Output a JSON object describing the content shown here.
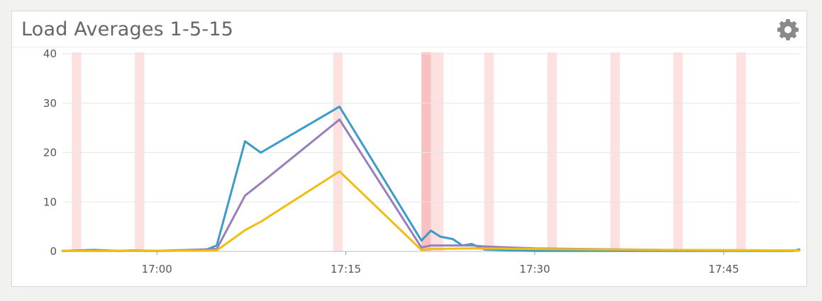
{
  "panel": {
    "title": "Load Averages 1-5-15",
    "settings_icon": "gear-icon"
  },
  "chart_data": {
    "type": "line",
    "title": "Load Averages 1-5-15",
    "xlabel": "",
    "ylabel": "",
    "ylim": [
      0,
      40
    ],
    "xlim_minutes": [
      "16:52:30",
      "17:51:00"
    ],
    "yticks": [
      0,
      10,
      20,
      30,
      40
    ],
    "xticks": [
      "17:00",
      "17:15",
      "17:30",
      "17:45"
    ],
    "grid": true,
    "legend": "none",
    "colors": {
      "series1": "#3c9cc9",
      "series2": "#9a7fba",
      "series3": "#eebf12",
      "band": "#fde0e0",
      "band_strong": "#f8c0c0",
      "grid": "#e6e6e6"
    },
    "highlight_bands": [
      [
        "16:53:15",
        "16:54:00"
      ],
      [
        "16:58:15",
        "16:59:00"
      ],
      [
        "17:14:00",
        "17:14:45"
      ],
      [
        "17:21:00",
        "17:21:45"
      ],
      [
        "17:21:45",
        "17:22:45"
      ],
      [
        "17:26:00",
        "17:26:45"
      ],
      [
        "17:31:00",
        "17:31:45"
      ],
      [
        "17:36:00",
        "17:36:45"
      ],
      [
        "17:41:00",
        "17:41:45"
      ],
      [
        "17:46:00",
        "17:46:45"
      ]
    ],
    "strong_bands": [
      [
        "17:21:00",
        "17:21:45"
      ]
    ],
    "series": [
      {
        "points": [
          [
            "16:52:30",
            0.1
          ],
          [
            "16:55:00",
            0.3
          ],
          [
            "16:57:00",
            0.1
          ],
          [
            "16:58:00",
            0.2
          ],
          [
            "17:00:00",
            0.1
          ],
          [
            "17:03:45",
            0.2
          ],
          [
            "17:04:45",
            1.2
          ],
          [
            "17:07:00",
            22.3
          ],
          [
            "17:08:15",
            20.0
          ],
          [
            "17:14:30",
            29.3
          ],
          [
            "17:21:00",
            2.2
          ],
          [
            "17:21:45",
            4.2
          ],
          [
            "17:22:30",
            3.0
          ],
          [
            "17:23:30",
            2.5
          ],
          [
            "17:24:15",
            1.2
          ],
          [
            "17:25:00",
            1.5
          ],
          [
            "17:26:00",
            0.4
          ],
          [
            "17:28:00",
            0.2
          ],
          [
            "17:30:00",
            0.1
          ],
          [
            "17:40:00",
            0.1
          ],
          [
            "17:50:30",
            0.1
          ],
          [
            "17:51:00",
            0.4
          ]
        ]
      },
      {
        "points": [
          [
            "16:52:30",
            0.1
          ],
          [
            "16:58:00",
            0.1
          ],
          [
            "17:00:00",
            0.1
          ],
          [
            "17:04:45",
            0.5
          ],
          [
            "17:07:00",
            11.3
          ],
          [
            "17:08:15",
            13.8
          ],
          [
            "17:14:30",
            26.7
          ],
          [
            "17:21:00",
            0.8
          ],
          [
            "17:21:45",
            1.2
          ],
          [
            "17:25:00",
            1.2
          ],
          [
            "17:26:00",
            1.0
          ],
          [
            "17:30:00",
            0.6
          ],
          [
            "17:40:00",
            0.3
          ],
          [
            "17:51:00",
            0.2
          ]
        ]
      },
      {
        "points": [
          [
            "16:52:30",
            0.1
          ],
          [
            "16:58:00",
            0.1
          ],
          [
            "17:00:00",
            0.1
          ],
          [
            "17:04:45",
            0.2
          ],
          [
            "17:07:00",
            4.3
          ],
          [
            "17:08:15",
            6.0
          ],
          [
            "17:14:30",
            16.2
          ],
          [
            "17:21:00",
            0.3
          ],
          [
            "17:21:45",
            0.5
          ],
          [
            "17:25:00",
            0.6
          ],
          [
            "17:30:00",
            0.5
          ],
          [
            "17:40:00",
            0.3
          ],
          [
            "17:51:00",
            0.2
          ]
        ]
      }
    ]
  }
}
